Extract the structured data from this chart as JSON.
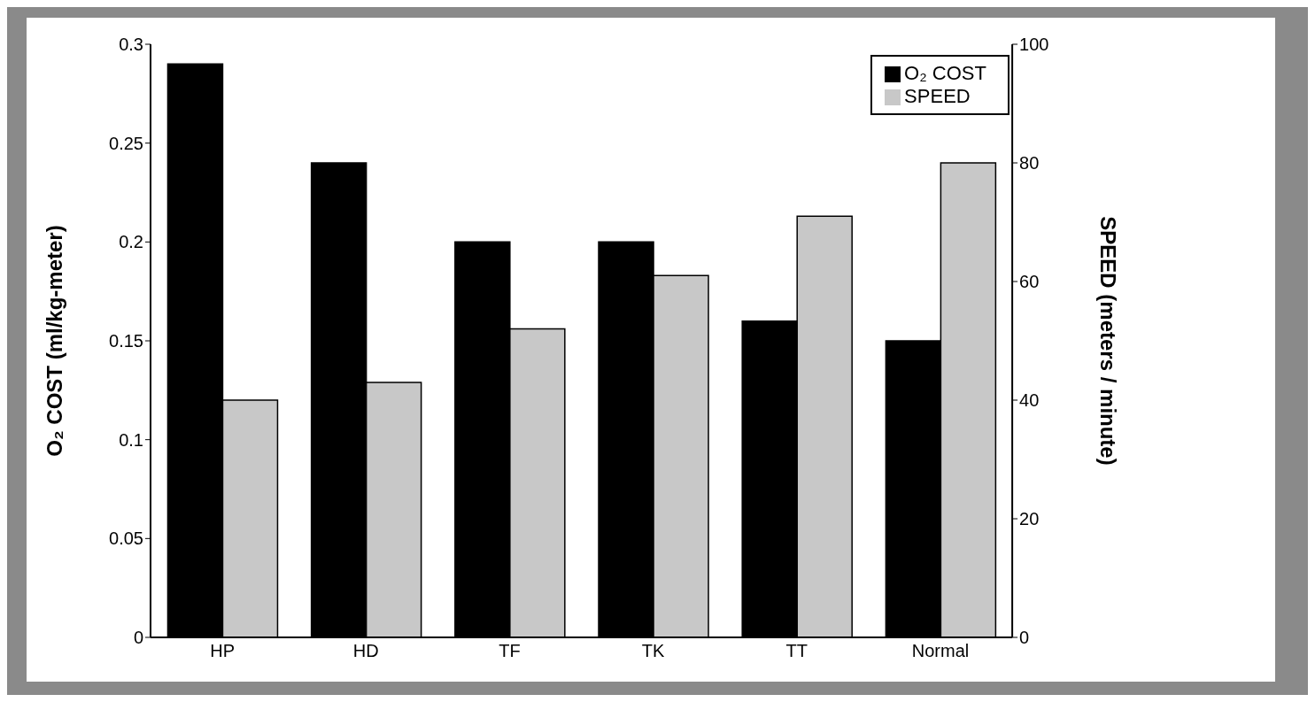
{
  "chart_data": {
    "type": "bar",
    "categories": [
      "HP",
      "HD",
      "TF",
      "TK",
      "TT",
      "Normal"
    ],
    "series": [
      {
        "name": "O₂ COST",
        "color": "#000000",
        "values": [
          0.29,
          0.24,
          0.2,
          0.2,
          0.16,
          0.15
        ]
      },
      {
        "name": "SPEED",
        "color": "#c8c8c8",
        "axis": "y2",
        "values": [
          40,
          43,
          52,
          61,
          71,
          80
        ]
      }
    ],
    "ylabel": "O₂ COST (ml/kg-meter)",
    "y2label": "SPEED (meters / minute)",
    "ylim": [
      0,
      0.3
    ],
    "yticks": [
      0,
      0.05,
      0.1,
      0.15,
      0.2,
      0.25,
      0.3
    ],
    "y2lim": [
      0,
      100
    ],
    "y2ticks": [
      0,
      20,
      40,
      60,
      80,
      100
    ],
    "legend": "top right",
    "grid": false
  }
}
